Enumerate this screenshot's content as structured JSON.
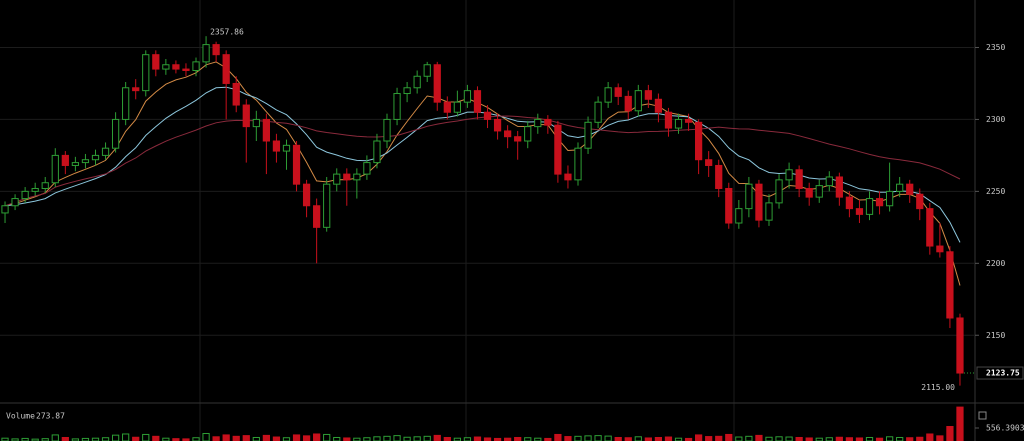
{
  "chart_data": {
    "type": "candlestick",
    "open": [
      2235,
      2240,
      2245,
      2250,
      2252,
      2256,
      2275,
      2268,
      2270,
      2272,
      2275,
      2280,
      2300,
      2322,
      2320,
      2345,
      2335,
      2338,
      2335,
      2334,
      2340,
      2352,
      2345,
      2325,
      2310,
      2295,
      2300,
      2285,
      2278,
      2282,
      2255,
      2240,
      2225,
      2255,
      2262,
      2258,
      2262,
      2270,
      2285,
      2300,
      2318,
      2322,
      2330,
      2338,
      2312,
      2305,
      2312,
      2320,
      2305,
      2300,
      2292,
      2288,
      2285,
      2295,
      2300,
      2296,
      2262,
      2258,
      2280,
      2298,
      2312,
      2322,
      2316,
      2306,
      2320,
      2314,
      2305,
      2294,
      2300,
      2298,
      2272,
      2268,
      2252,
      2228,
      2238,
      2255,
      2230,
      2242,
      2258,
      2265,
      2252,
      2246,
      2254,
      2260,
      2246,
      2238,
      2234,
      2245,
      2240,
      2250,
      2255,
      2248,
      2238,
      2212,
      2208,
      2162
    ],
    "high": [
      2243,
      2248,
      2253,
      2256,
      2260,
      2280,
      2278,
      2274,
      2276,
      2279,
      2284,
      2305,
      2326,
      2328,
      2348,
      2348,
      2342,
      2341,
      2339,
      2343,
      2357.86,
      2354,
      2348,
      2330,
      2314,
      2306,
      2304,
      2290,
      2286,
      2285,
      2258,
      2245,
      2260,
      2266,
      2266,
      2266,
      2275,
      2290,
      2304,
      2322,
      2326,
      2334,
      2340,
      2340,
      2316,
      2320,
      2324,
      2323,
      2310,
      2304,
      2296,
      2292,
      2299,
      2304,
      2303,
      2299,
      2268,
      2284,
      2302,
      2316,
      2326,
      2325,
      2320,
      2324,
      2324,
      2318,
      2308,
      2304,
      2304,
      2300,
      2278,
      2272,
      2256,
      2244,
      2260,
      2258,
      2248,
      2262,
      2270,
      2268,
      2256,
      2258,
      2264,
      2263,
      2250,
      2244,
      2250,
      2250,
      2270,
      2260,
      2258,
      2252,
      2242,
      2228,
      2212,
      2165
    ],
    "low": [
      2228,
      2237,
      2242,
      2247,
      2249,
      2253,
      2262,
      2264,
      2266,
      2268,
      2272,
      2277,
      2296,
      2314,
      2316,
      2330,
      2331,
      2332,
      2330,
      2330,
      2336,
      2340,
      2300,
      2305,
      2270,
      2285,
      2262,
      2270,
      2265,
      2250,
      2232,
      2200,
      2222,
      2250,
      2240,
      2245,
      2258,
      2266,
      2280,
      2296,
      2312,
      2318,
      2326,
      2306,
      2300,
      2302,
      2308,
      2300,
      2294,
      2286,
      2280,
      2272,
      2280,
      2290,
      2290,
      2256,
      2252,
      2254,
      2276,
      2294,
      2308,
      2310,
      2300,
      2302,
      2308,
      2298,
      2288,
      2290,
      2292,
      2262,
      2260,
      2246,
      2224,
      2224,
      2232,
      2225,
      2226,
      2238,
      2252,
      2246,
      2240,
      2242,
      2250,
      2240,
      2232,
      2228,
      2230,
      2234,
      2236,
      2246,
      2242,
      2230,
      2206,
      2204,
      2155,
      2115
    ],
    "close": [
      2240,
      2245,
      2250,
      2252,
      2256,
      2275,
      2268,
      2270,
      2272,
      2275,
      2280,
      2300,
      2322,
      2320,
      2345,
      2335,
      2338,
      2335,
      2334,
      2340,
      2352,
      2345,
      2325,
      2310,
      2295,
      2300,
      2285,
      2278,
      2282,
      2255,
      2240,
      2225,
      2255,
      2262,
      2258,
      2262,
      2270,
      2285,
      2300,
      2318,
      2322,
      2330,
      2338,
      2312,
      2305,
      2312,
      2320,
      2305,
      2300,
      2292,
      2288,
      2285,
      2295,
      2300,
      2296,
      2262,
      2258,
      2280,
      2298,
      2312,
      2322,
      2316,
      2306,
      2320,
      2314,
      2305,
      2294,
      2300,
      2298,
      2272,
      2268,
      2252,
      2228,
      2238,
      2255,
      2230,
      2242,
      2258,
      2265,
      2252,
      2246,
      2254,
      2260,
      2246,
      2238,
      2234,
      2245,
      2240,
      2250,
      2255,
      2248,
      2238,
      2212,
      2208,
      2162,
      2123.75
    ],
    "volume": [
      120,
      90,
      110,
      80,
      100,
      260,
      150,
      90,
      110,
      120,
      140,
      250,
      300,
      160,
      280,
      200,
      120,
      100,
      90,
      140,
      320,
      180,
      260,
      200,
      230,
      150,
      240,
      170,
      140,
      260,
      220,
      300,
      280,
      150,
      130,
      120,
      140,
      180,
      200,
      230,
      160,
      180,
      200,
      240,
      150,
      120,
      140,
      170,
      130,
      110,
      120,
      150,
      140,
      120,
      110,
      280,
      190,
      200,
      220,
      230,
      210,
      150,
      140,
      180,
      130,
      150,
      170,
      120,
      110,
      260,
      190,
      200,
      280,
      170,
      200,
      240,
      160,
      180,
      170,
      150,
      130,
      120,
      140,
      160,
      140,
      130,
      150,
      120,
      180,
      150,
      140,
      160,
      300,
      220,
      620,
      1450
    ],
    "ylim": [
      2105,
      2383
    ],
    "yticks": [
      2150,
      2200,
      2250,
      2300,
      2350
    ],
    "grid": true,
    "up_color": "#2e9e35",
    "down_color": "#c8101c",
    "ma_colors": [
      "#d38a45",
      "#8cc6dc",
      "#8a2a3c"
    ],
    "high_annotation": 2357.86,
    "low_annotation": {
      "value": 2115,
      "label": "2115.00"
    },
    "last_price": 2123.75,
    "volume_title": "Volume",
    "volume_value": 273.87,
    "volume_ylim": [
      0,
      1540
    ],
    "volume_yticks": [
      556.39038
    ]
  }
}
